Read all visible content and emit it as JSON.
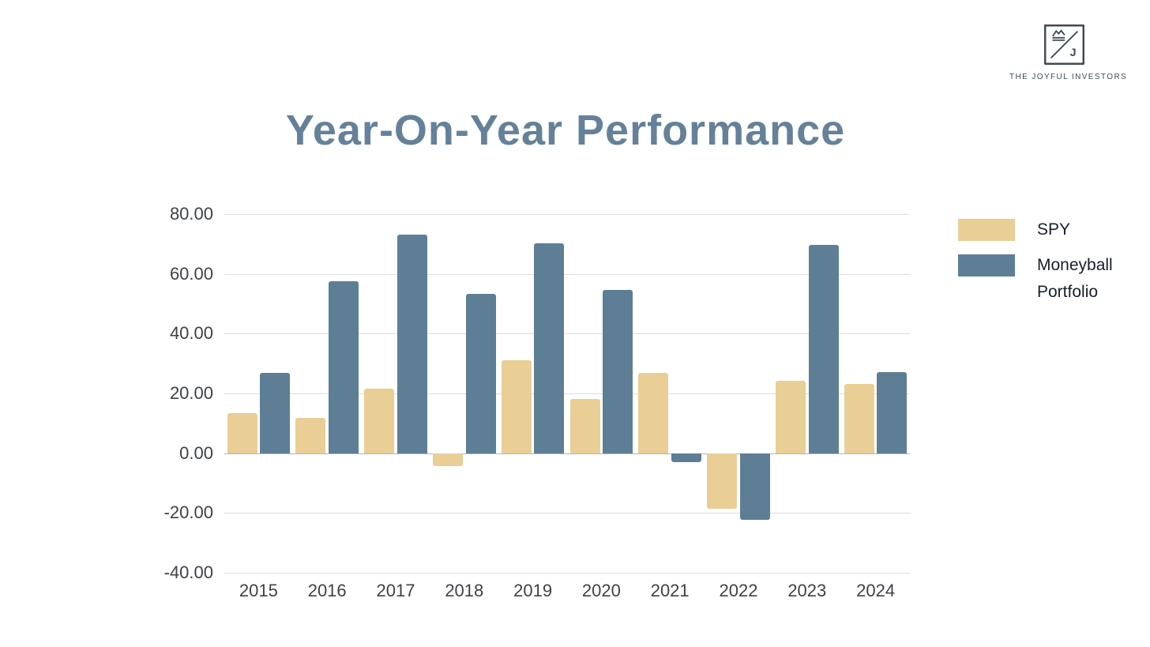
{
  "logo": {
    "text": "THE JOYFUL INVESTORS",
    "icon": "joyful-investors-monogram-icon"
  },
  "title": {
    "text": "Year-On-Year Performance"
  },
  "colors": {
    "title": "#65819a",
    "spy": "#e9ce96",
    "moneyball": "#5e7e95",
    "grid": "#dadde0",
    "zero_line": "#b0b6bb",
    "axis_text": "#3d4247",
    "legend_text": "#17202a",
    "logo": "#3e4a54"
  },
  "chart_data": {
    "type": "bar",
    "title": "Year-On-Year Performance",
    "categories": [
      "2015",
      "2016",
      "2017",
      "2018",
      "2019",
      "2020",
      "2021",
      "2022",
      "2023",
      "2024"
    ],
    "series": [
      {
        "name": "SPY",
        "color": "#e9ce96",
        "values": [
          13.5,
          11.7,
          21.5,
          -4.3,
          31.2,
          18.2,
          26.8,
          -18.6,
          24.2,
          23.3
        ]
      },
      {
        "name": "Moneyball Portfolio",
        "color": "#5e7e95",
        "values": [
          26.8,
          57.5,
          73.2,
          53.2,
          70.1,
          54.6,
          -3.1,
          -22.3,
          69.7,
          27.2
        ]
      }
    ],
    "xlabel": "",
    "ylabel": "",
    "ylim": [
      -40,
      80
    ],
    "ytick_values": [
      80,
      60,
      40,
      20,
      0,
      -20,
      -40
    ],
    "ytick_labels": [
      "80.00",
      "60.00",
      "40.00",
      "20.00",
      "0.00",
      "-20.00",
      "-40.00"
    ],
    "grid": "horizontal",
    "legend_position": "right"
  }
}
